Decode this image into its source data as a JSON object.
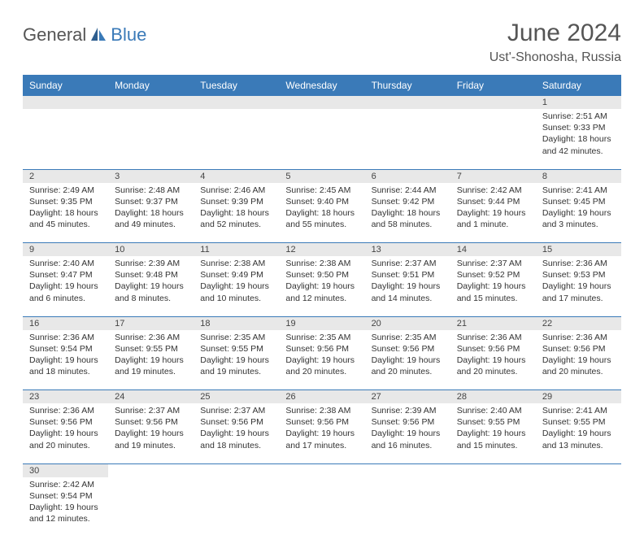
{
  "logo": {
    "part1": "General",
    "part2": "Blue"
  },
  "title": "June 2024",
  "location": "Ust'-Shonosha, Russia",
  "colors": {
    "header_bg": "#3a7ab8",
    "header_text": "#ffffff",
    "daynum_bg": "#e8e8e8",
    "border": "#3a7ab8",
    "text": "#333333",
    "logo_gray": "#555555",
    "logo_blue": "#3a7ab8"
  },
  "weekdays": [
    "Sunday",
    "Monday",
    "Tuesday",
    "Wednesday",
    "Thursday",
    "Friday",
    "Saturday"
  ],
  "weeks": [
    [
      null,
      null,
      null,
      null,
      null,
      null,
      {
        "n": "1",
        "sr": "2:51 AM",
        "ss": "9:33 PM",
        "dl": "18 hours and 42 minutes."
      }
    ],
    [
      {
        "n": "2",
        "sr": "2:49 AM",
        "ss": "9:35 PM",
        "dl": "18 hours and 45 minutes."
      },
      {
        "n": "3",
        "sr": "2:48 AM",
        "ss": "9:37 PM",
        "dl": "18 hours and 49 minutes."
      },
      {
        "n": "4",
        "sr": "2:46 AM",
        "ss": "9:39 PM",
        "dl": "18 hours and 52 minutes."
      },
      {
        "n": "5",
        "sr": "2:45 AM",
        "ss": "9:40 PM",
        "dl": "18 hours and 55 minutes."
      },
      {
        "n": "6",
        "sr": "2:44 AM",
        "ss": "9:42 PM",
        "dl": "18 hours and 58 minutes."
      },
      {
        "n": "7",
        "sr": "2:42 AM",
        "ss": "9:44 PM",
        "dl": "19 hours and 1 minute."
      },
      {
        "n": "8",
        "sr": "2:41 AM",
        "ss": "9:45 PM",
        "dl": "19 hours and 3 minutes."
      }
    ],
    [
      {
        "n": "9",
        "sr": "2:40 AM",
        "ss": "9:47 PM",
        "dl": "19 hours and 6 minutes."
      },
      {
        "n": "10",
        "sr": "2:39 AM",
        "ss": "9:48 PM",
        "dl": "19 hours and 8 minutes."
      },
      {
        "n": "11",
        "sr": "2:38 AM",
        "ss": "9:49 PM",
        "dl": "19 hours and 10 minutes."
      },
      {
        "n": "12",
        "sr": "2:38 AM",
        "ss": "9:50 PM",
        "dl": "19 hours and 12 minutes."
      },
      {
        "n": "13",
        "sr": "2:37 AM",
        "ss": "9:51 PM",
        "dl": "19 hours and 14 minutes."
      },
      {
        "n": "14",
        "sr": "2:37 AM",
        "ss": "9:52 PM",
        "dl": "19 hours and 15 minutes."
      },
      {
        "n": "15",
        "sr": "2:36 AM",
        "ss": "9:53 PM",
        "dl": "19 hours and 17 minutes."
      }
    ],
    [
      {
        "n": "16",
        "sr": "2:36 AM",
        "ss": "9:54 PM",
        "dl": "19 hours and 18 minutes."
      },
      {
        "n": "17",
        "sr": "2:36 AM",
        "ss": "9:55 PM",
        "dl": "19 hours and 19 minutes."
      },
      {
        "n": "18",
        "sr": "2:35 AM",
        "ss": "9:55 PM",
        "dl": "19 hours and 19 minutes."
      },
      {
        "n": "19",
        "sr": "2:35 AM",
        "ss": "9:56 PM",
        "dl": "19 hours and 20 minutes."
      },
      {
        "n": "20",
        "sr": "2:35 AM",
        "ss": "9:56 PM",
        "dl": "19 hours and 20 minutes."
      },
      {
        "n": "21",
        "sr": "2:36 AM",
        "ss": "9:56 PM",
        "dl": "19 hours and 20 minutes."
      },
      {
        "n": "22",
        "sr": "2:36 AM",
        "ss": "9:56 PM",
        "dl": "19 hours and 20 minutes."
      }
    ],
    [
      {
        "n": "23",
        "sr": "2:36 AM",
        "ss": "9:56 PM",
        "dl": "19 hours and 20 minutes."
      },
      {
        "n": "24",
        "sr": "2:37 AM",
        "ss": "9:56 PM",
        "dl": "19 hours and 19 minutes."
      },
      {
        "n": "25",
        "sr": "2:37 AM",
        "ss": "9:56 PM",
        "dl": "19 hours and 18 minutes."
      },
      {
        "n": "26",
        "sr": "2:38 AM",
        "ss": "9:56 PM",
        "dl": "19 hours and 17 minutes."
      },
      {
        "n": "27",
        "sr": "2:39 AM",
        "ss": "9:56 PM",
        "dl": "19 hours and 16 minutes."
      },
      {
        "n": "28",
        "sr": "2:40 AM",
        "ss": "9:55 PM",
        "dl": "19 hours and 15 minutes."
      },
      {
        "n": "29",
        "sr": "2:41 AM",
        "ss": "9:55 PM",
        "dl": "19 hours and 13 minutes."
      }
    ],
    [
      {
        "n": "30",
        "sr": "2:42 AM",
        "ss": "9:54 PM",
        "dl": "19 hours and 12 minutes."
      },
      null,
      null,
      null,
      null,
      null,
      null
    ]
  ],
  "labels": {
    "sunrise": "Sunrise:",
    "sunset": "Sunset:",
    "daylight": "Daylight:"
  }
}
